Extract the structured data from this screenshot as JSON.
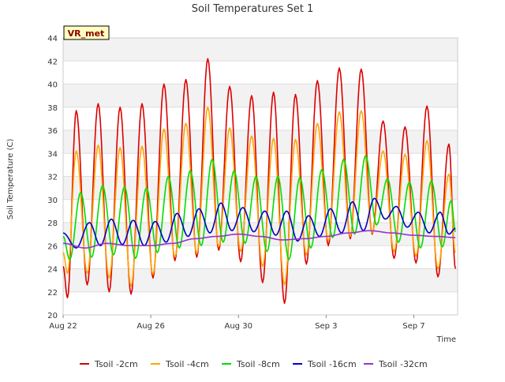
{
  "chart_data": {
    "type": "line",
    "title": "Soil Temperatures Set 1",
    "xlabel": "Time",
    "ylabel": "Soil Temperature (C)",
    "station_badge": "VR_met",
    "x_start": "Aug 22",
    "x_tick_labels": [
      "Aug 22",
      "Aug 26",
      "Aug 30",
      "Sep 3",
      "Sep 7"
    ],
    "x_tick_days": [
      0,
      4,
      8,
      12,
      16
    ],
    "xlim_days": [
      0,
      18
    ],
    "ylim": [
      20,
      44
    ],
    "y_ticks": [
      20,
      22,
      24,
      26,
      28,
      30,
      32,
      34,
      36,
      38,
      40,
      42,
      44
    ],
    "grid": true,
    "legend_position": "bottom",
    "series": [
      {
        "name": "Tsoil -2cm",
        "color": "#dd0000",
        "points": [
          [
            0.0,
            24.2
          ],
          [
            0.2,
            21.5
          ],
          [
            0.6,
            37.7
          ],
          [
            1.1,
            22.6
          ],
          [
            1.6,
            38.3
          ],
          [
            2.1,
            22.0
          ],
          [
            2.6,
            38.0
          ],
          [
            3.1,
            21.8
          ],
          [
            3.6,
            38.3
          ],
          [
            4.1,
            23.2
          ],
          [
            4.6,
            40.0
          ],
          [
            5.1,
            24.7
          ],
          [
            5.6,
            40.4
          ],
          [
            6.1,
            25.0
          ],
          [
            6.6,
            42.2
          ],
          [
            7.1,
            25.6
          ],
          [
            7.6,
            39.8
          ],
          [
            8.1,
            24.6
          ],
          [
            8.6,
            39.0
          ],
          [
            9.1,
            22.8
          ],
          [
            9.6,
            39.3
          ],
          [
            10.1,
            21.0
          ],
          [
            10.6,
            39.1
          ],
          [
            11.1,
            24.4
          ],
          [
            11.6,
            40.3
          ],
          [
            12.1,
            26.0
          ],
          [
            12.6,
            41.4
          ],
          [
            13.1,
            26.6
          ],
          [
            13.6,
            41.3
          ],
          [
            14.1,
            27.0
          ],
          [
            14.6,
            36.8
          ],
          [
            15.1,
            24.9
          ],
          [
            15.6,
            36.3
          ],
          [
            16.1,
            24.5
          ],
          [
            16.6,
            38.1
          ],
          [
            17.1,
            23.3
          ],
          [
            17.6,
            34.8
          ],
          [
            17.9,
            24.0
          ]
        ]
      },
      {
        "name": "Tsoil -4cm",
        "color": "#ffa500",
        "points": [
          [
            0.0,
            25.4
          ],
          [
            0.2,
            23.6
          ],
          [
            0.6,
            34.2
          ],
          [
            1.1,
            23.6
          ],
          [
            1.6,
            34.7
          ],
          [
            2.1,
            23.2
          ],
          [
            2.6,
            34.5
          ],
          [
            3.1,
            22.5
          ],
          [
            3.6,
            34.6
          ],
          [
            4.1,
            23.5
          ],
          [
            4.6,
            36.1
          ],
          [
            5.1,
            25.0
          ],
          [
            5.6,
            36.6
          ],
          [
            6.1,
            25.3
          ],
          [
            6.6,
            38.0
          ],
          [
            7.1,
            25.9
          ],
          [
            7.6,
            36.2
          ],
          [
            8.1,
            25.5
          ],
          [
            8.6,
            35.5
          ],
          [
            9.1,
            24.2
          ],
          [
            9.6,
            35.3
          ],
          [
            10.1,
            22.6
          ],
          [
            10.6,
            35.2
          ],
          [
            11.1,
            25.2
          ],
          [
            11.6,
            36.6
          ],
          [
            12.1,
            26.4
          ],
          [
            12.6,
            37.6
          ],
          [
            13.1,
            26.8
          ],
          [
            13.6,
            37.7
          ],
          [
            14.1,
            27.1
          ],
          [
            14.6,
            34.2
          ],
          [
            15.1,
            25.5
          ],
          [
            15.6,
            33.9
          ],
          [
            16.1,
            25.1
          ],
          [
            16.6,
            35.1
          ],
          [
            17.1,
            24.0
          ],
          [
            17.6,
            32.2
          ],
          [
            17.9,
            25.4
          ]
        ]
      },
      {
        "name": "Tsoil -8cm",
        "color": "#00dd00",
        "points": [
          [
            0.0,
            26.8
          ],
          [
            0.3,
            24.8
          ],
          [
            0.8,
            30.6
          ],
          [
            1.3,
            25.0
          ],
          [
            1.8,
            31.2
          ],
          [
            2.3,
            25.2
          ],
          [
            2.8,
            31.1
          ],
          [
            3.3,
            24.9
          ],
          [
            3.8,
            31.0
          ],
          [
            4.3,
            25.4
          ],
          [
            4.8,
            32.0
          ],
          [
            5.3,
            25.8
          ],
          [
            5.8,
            32.5
          ],
          [
            6.3,
            26.0
          ],
          [
            6.8,
            33.5
          ],
          [
            7.3,
            26.3
          ],
          [
            7.8,
            32.5
          ],
          [
            8.3,
            26.2
          ],
          [
            8.8,
            32.0
          ],
          [
            9.3,
            25.5
          ],
          [
            9.8,
            32.0
          ],
          [
            10.3,
            24.8
          ],
          [
            10.8,
            31.9
          ],
          [
            11.3,
            25.8
          ],
          [
            11.8,
            32.6
          ],
          [
            12.3,
            26.7
          ],
          [
            12.8,
            33.5
          ],
          [
            13.3,
            27.0
          ],
          [
            13.8,
            33.8
          ],
          [
            14.3,
            27.8
          ],
          [
            14.8,
            31.8
          ],
          [
            15.3,
            26.3
          ],
          [
            15.8,
            31.5
          ],
          [
            16.3,
            25.8
          ],
          [
            16.8,
            31.6
          ],
          [
            17.3,
            25.9
          ],
          [
            17.7,
            29.9
          ],
          [
            17.9,
            27.2
          ]
        ]
      },
      {
        "name": "Tsoil -16cm",
        "color": "#0000cc",
        "points": [
          [
            0.0,
            27.1
          ],
          [
            0.6,
            25.8
          ],
          [
            1.2,
            28.0
          ],
          [
            1.7,
            26.0
          ],
          [
            2.2,
            28.3
          ],
          [
            2.7,
            26.1
          ],
          [
            3.2,
            28.2
          ],
          [
            3.7,
            26.0
          ],
          [
            4.2,
            28.1
          ],
          [
            4.7,
            26.3
          ],
          [
            5.2,
            28.8
          ],
          [
            5.7,
            26.8
          ],
          [
            6.2,
            29.2
          ],
          [
            6.7,
            27.1
          ],
          [
            7.2,
            29.7
          ],
          [
            7.7,
            27.3
          ],
          [
            8.2,
            29.3
          ],
          [
            8.7,
            27.2
          ],
          [
            9.2,
            29.0
          ],
          [
            9.7,
            26.9
          ],
          [
            10.2,
            29.0
          ],
          [
            10.7,
            26.4
          ],
          [
            11.2,
            28.6
          ],
          [
            11.7,
            26.8
          ],
          [
            12.2,
            29.2
          ],
          [
            12.7,
            27.1
          ],
          [
            13.2,
            29.8
          ],
          [
            13.7,
            27.3
          ],
          [
            14.2,
            30.1
          ],
          [
            14.7,
            28.3
          ],
          [
            15.2,
            29.4
          ],
          [
            15.7,
            27.6
          ],
          [
            16.2,
            28.9
          ],
          [
            16.7,
            27.1
          ],
          [
            17.2,
            28.9
          ],
          [
            17.6,
            27.0
          ],
          [
            17.9,
            27.5
          ]
        ]
      },
      {
        "name": "Tsoil -32cm",
        "color": "#9932cc",
        "points": [
          [
            0.0,
            26.2
          ],
          [
            1.0,
            25.8
          ],
          [
            2.0,
            26.2
          ],
          [
            3.0,
            26.0
          ],
          [
            4.0,
            26.0
          ],
          [
            5.0,
            26.2
          ],
          [
            6.0,
            26.6
          ],
          [
            7.0,
            26.8
          ],
          [
            8.0,
            27.0
          ],
          [
            9.0,
            26.8
          ],
          [
            10.0,
            26.5
          ],
          [
            11.0,
            26.6
          ],
          [
            12.0,
            26.8
          ],
          [
            13.0,
            27.1
          ],
          [
            14.0,
            27.3
          ],
          [
            15.0,
            27.1
          ],
          [
            16.0,
            26.9
          ],
          [
            17.0,
            26.8
          ],
          [
            17.9,
            26.7
          ]
        ]
      }
    ]
  }
}
